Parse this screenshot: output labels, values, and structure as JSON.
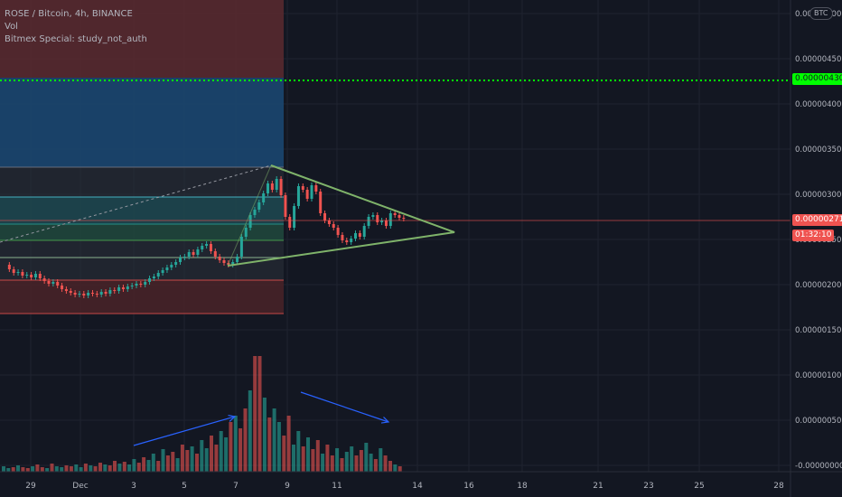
{
  "legend": {
    "symbol": "ROSE / Bitcoin, 4h, BINANCE",
    "volume": "Vol",
    "study": "Bitmex Special: study_not_auth"
  },
  "currency_badge": "BTC",
  "price_axis": {
    "ticks": [
      "0.00000500",
      "0.00000450",
      "0.00000400",
      "0.00000350",
      "0.00000300",
      "0.00000250",
      "0.00000200",
      "0.00000150",
      "0.00000100",
      "0.00000050",
      "-0.00000000"
    ],
    "last_price": "0.00000271",
    "countdown": "01:32:10",
    "alert_level": "0.00000430"
  },
  "time_axis": {
    "ticks": [
      "29",
      "Dec",
      "3",
      "5",
      "7",
      "9",
      "11",
      "14",
      "16",
      "18",
      "21",
      "23",
      "25",
      "28"
    ]
  },
  "colors": {
    "background": "#131722",
    "up": "#26a69a",
    "down": "#ef5350",
    "alert_line": "#00ff00",
    "triangle": "#7fb36a",
    "trend_arrow": "#2962ff"
  },
  "drawings": [
    {
      "type": "symmetrical-triangle",
      "apex_date": "Dec 15"
    },
    {
      "type": "long-position",
      "entry": "0.00000271",
      "target": "0.00000430"
    },
    {
      "type": "volume-arrow-up"
    },
    {
      "type": "volume-arrow-down"
    }
  ]
}
